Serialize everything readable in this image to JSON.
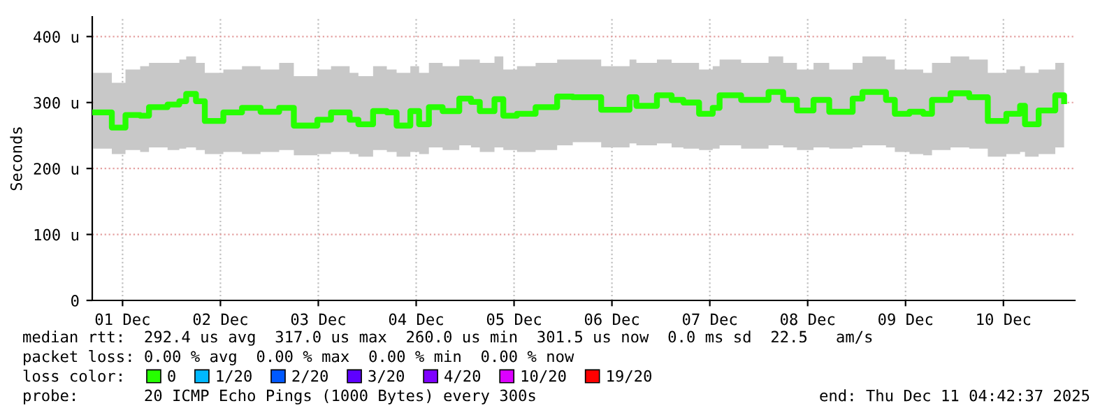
{
  "chart_data": {
    "type": "step",
    "ylabel": "Seconds",
    "xlim": [
      "2025-11-30T16:34",
      "2025-12-10T17:31"
    ],
    "xticks": [
      {
        "value": "2025-12-01",
        "label": "01 Dec"
      },
      {
        "value": "2025-12-02",
        "label": "02 Dec"
      },
      {
        "value": "2025-12-03",
        "label": "03 Dec"
      },
      {
        "value": "2025-12-04",
        "label": "04 Dec"
      },
      {
        "value": "2025-12-05",
        "label": "05 Dec"
      },
      {
        "value": "2025-12-06",
        "label": "06 Dec"
      },
      {
        "value": "2025-12-07",
        "label": "07 Dec"
      },
      {
        "value": "2025-12-08",
        "label": "08 Dec"
      },
      {
        "value": "2025-12-09",
        "label": "09 Dec"
      },
      {
        "value": "2025-12-10",
        "label": "10 Dec"
      }
    ],
    "ylim": [
      0,
      430
    ],
    "yticks": [
      0,
      {
        "value": 100,
        "label": "100 u"
      },
      {
        "value": 200,
        "label": "200 u"
      },
      {
        "value": 300,
        "label": "300 u"
      },
      {
        "value": 400,
        "label": "400 u"
      }
    ],
    "x": [
      "2025-11-30T16:48",
      "2025-11-30T21:22",
      "2025-12-01T00:43",
      "2025-12-01T04:19",
      "2025-12-01T06:29",
      "2025-12-01T11:02",
      "2025-12-01T13:55",
      "2025-12-01T15:36",
      "2025-12-01T18:00",
      "2025-12-01T20:10",
      "2025-12-02T00:43",
      "2025-12-02T05:17",
      "2025-12-02T09:50",
      "2025-12-02T14:24",
      "2025-12-02T18:00",
      "2025-12-02T23:46",
      "2025-12-03T03:07",
      "2025-12-03T07:41",
      "2025-12-03T09:50",
      "2025-12-03T13:26",
      "2025-12-03T16:48",
      "2025-12-03T19:12",
      "2025-12-03T22:34",
      "2025-12-04T00:43",
      "2025-12-04T03:07",
      "2025-12-04T06:29",
      "2025-12-04T10:34",
      "2025-12-04T13:26",
      "2025-12-04T15:36",
      "2025-12-04T19:12",
      "2025-12-04T21:22",
      "2025-12-05T00:43",
      "2025-12-05T05:17",
      "2025-12-05T10:34",
      "2025-12-05T14:24",
      "2025-12-05T21:22",
      "2025-12-06T04:19",
      "2025-12-06T06:00",
      "2025-12-06T11:02",
      "2025-12-06T14:38",
      "2025-12-06T17:31",
      "2025-12-06T21:22",
      "2025-12-07T00:43",
      "2025-12-07T02:24",
      "2025-12-07T07:41",
      "2025-12-07T14:24",
      "2025-12-07T18:00",
      "2025-12-07T21:22",
      "2025-12-08T01:26",
      "2025-12-08T05:17",
      "2025-12-08T11:02",
      "2025-12-08T13:26",
      "2025-12-08T19:12",
      "2025-12-08T21:22",
      "2025-12-09T00:58",
      "2025-12-09T04:19",
      "2025-12-09T06:29",
      "2025-12-09T11:02",
      "2025-12-09T15:36",
      "2025-12-09T20:10",
      "2025-12-10T00:43",
      "2025-12-10T04:05",
      "2025-12-10T05:17",
      "2025-12-10T08:38",
      "2025-12-10T12:43",
      "2025-12-10T14:53"
    ],
    "series": [
      {
        "name": "0",
        "color": "#26ff00",
        "values": [
          285,
          262,
          281,
          280,
          293,
          297,
          302,
          313,
          302,
          272,
          285,
          292,
          286,
          292,
          265,
          274,
          285,
          274,
          267,
          287,
          285,
          265,
          287,
          267,
          293,
          287,
          306,
          301,
          287,
          305,
          280,
          283,
          293,
          309,
          308,
          289,
          308,
          295,
          311,
          304,
          300,
          283,
          292,
          311,
          304,
          316,
          304,
          288,
          304,
          286,
          306,
          316,
          304,
          283,
          286,
          283,
          304,
          314,
          308,
          272,
          283,
          295,
          267,
          288,
          311,
          302
        ],
        "lower": [
          230,
          222,
          228,
          225,
          232,
          228,
          230,
          232,
          228,
          222,
          225,
          222,
          225,
          228,
          220,
          222,
          225,
          222,
          218,
          228,
          225,
          218,
          225,
          222,
          232,
          228,
          235,
          232,
          225,
          232,
          228,
          225,
          228,
          235,
          240,
          232,
          238,
          235,
          238,
          232,
          230,
          228,
          230,
          235,
          230,
          235,
          232,
          228,
          232,
          230,
          232,
          235,
          232,
          225,
          222,
          220,
          228,
          232,
          230,
          218,
          222,
          225,
          218,
          222,
          232,
          235
        ],
        "upper": [
          345,
          330,
          350,
          355,
          360,
          360,
          365,
          370,
          360,
          345,
          350,
          355,
          350,
          360,
          340,
          350,
          355,
          345,
          340,
          355,
          350,
          345,
          355,
          345,
          360,
          355,
          365,
          365,
          360,
          370,
          350,
          355,
          360,
          365,
          365,
          355,
          365,
          360,
          365,
          360,
          360,
          350,
          355,
          365,
          360,
          370,
          360,
          350,
          360,
          350,
          360,
          370,
          365,
          350,
          350,
          345,
          360,
          370,
          365,
          345,
          350,
          355,
          345,
          350,
          360,
          360
        ]
      },
      {
        "name": "1/20",
        "color": "#00b8ff",
        "values": [
          null,
          null,
          null,
          null,
          null,
          null,
          null,
          null,
          null,
          null,
          null,
          null,
          null,
          null,
          null,
          null,
          null,
          null,
          null,
          null,
          null,
          null,
          null,
          null,
          null,
          null,
          null,
          null,
          null,
          null,
          null,
          null,
          null,
          null,
          null,
          null,
          null,
          null,
          null,
          null,
          null,
          null,
          null,
          null,
          null,
          null,
          null,
          null,
          null,
          null,
          null,
          null,
          null,
          null,
          null,
          null,
          null,
          null,
          null,
          null,
          null,
          null,
          null,
          null,
          null,
          null
        ]
      },
      {
        "name": "2/20",
        "color": "#0059ff",
        "values": [
          null,
          null,
          null,
          null,
          null,
          null,
          null,
          null,
          null,
          null,
          null,
          null,
          null,
          null,
          null,
          null,
          null,
          null,
          null,
          null,
          null,
          null,
          null,
          null,
          null,
          null,
          null,
          null,
          null,
          null,
          null,
          null,
          null,
          null,
          null,
          null,
          null,
          null,
          null,
          null,
          null,
          null,
          null,
          null,
          null,
          null,
          null,
          null,
          null,
          null,
          null,
          null,
          null,
          null,
          null,
          null,
          null,
          null,
          null,
          null,
          null,
          null,
          null,
          null,
          null,
          null
        ]
      },
      {
        "name": "3/20",
        "color": "#5e00ff",
        "values": [
          null,
          null,
          null,
          null,
          null,
          null,
          null,
          null,
          null,
          null,
          null,
          null,
          null,
          null,
          null,
          null,
          null,
          null,
          null,
          null,
          null,
          null,
          null,
          null,
          null,
          null,
          null,
          null,
          null,
          null,
          null,
          null,
          null,
          null,
          null,
          null,
          null,
          null,
          null,
          null,
          null,
          null,
          null,
          null,
          null,
          null,
          null,
          null,
          null,
          null,
          null,
          null,
          null,
          null,
          null,
          null,
          null,
          null,
          null,
          null,
          null,
          null,
          null,
          null,
          null,
          null
        ]
      },
      {
        "name": "4/20",
        "color": "#7e00ff",
        "values": [
          null,
          null,
          null,
          null,
          null,
          null,
          null,
          null,
          null,
          null,
          null,
          null,
          null,
          null,
          null,
          null,
          null,
          null,
          null,
          null,
          null,
          null,
          null,
          null,
          null,
          null,
          null,
          null,
          null,
          null,
          null,
          null,
          null,
          null,
          null,
          null,
          null,
          null,
          null,
          null,
          null,
          null,
          null,
          null,
          null,
          null,
          null,
          null,
          null,
          null,
          null,
          null,
          null,
          null,
          null,
          null,
          null,
          null,
          null,
          null,
          null,
          null,
          null,
          null,
          null,
          null
        ]
      },
      {
        "name": "10/20",
        "color": "#dd00ff",
        "values": [
          null,
          null,
          null,
          null,
          null,
          null,
          null,
          null,
          null,
          null,
          null,
          null,
          null,
          null,
          null,
          null,
          null,
          null,
          null,
          null,
          null,
          null,
          null,
          null,
          null,
          null,
          null,
          null,
          null,
          null,
          null,
          null,
          null,
          null,
          null,
          null,
          null,
          null,
          null,
          null,
          null,
          null,
          null,
          null,
          null,
          null,
          null,
          null,
          null,
          null,
          null,
          null,
          null,
          null,
          null,
          null,
          null,
          null,
          null,
          null,
          null,
          null,
          null,
          null,
          null,
          null
        ]
      },
      {
        "name": "19/20",
        "color": "#ff0000",
        "values": [
          null,
          null,
          null,
          null,
          null,
          null,
          null,
          null,
          null,
          null,
          null,
          null,
          null,
          null,
          null,
          null,
          null,
          null,
          null,
          null,
          null,
          null,
          null,
          null,
          null,
          null,
          null,
          null,
          null,
          null,
          null,
          null,
          null,
          null,
          null,
          null,
          null,
          null,
          null,
          null,
          null,
          null,
          null,
          null,
          null,
          null,
          null,
          null,
          null,
          null,
          null,
          null,
          null,
          null,
          null,
          null,
          null,
          null,
          null,
          null,
          null,
          null,
          null,
          null,
          null,
          null
        ]
      }
    ],
    "grid": true,
    "legend": "bottom",
    "annotations": [
      "median rtt:  292.4 us avg  317.0 us max  260.0 us min  301.5 us now  0.0 ms sd  22.5   am/s",
      "packet loss: 0.00 % avg  0.00 % max  0.00 % min  0.00 % now",
      "loss color:",
      "probe:       20 ICMP Echo Pings (1000 Bytes) every 300s",
      "end: Thu Dec 11 04:42:37 2025"
    ]
  }
}
